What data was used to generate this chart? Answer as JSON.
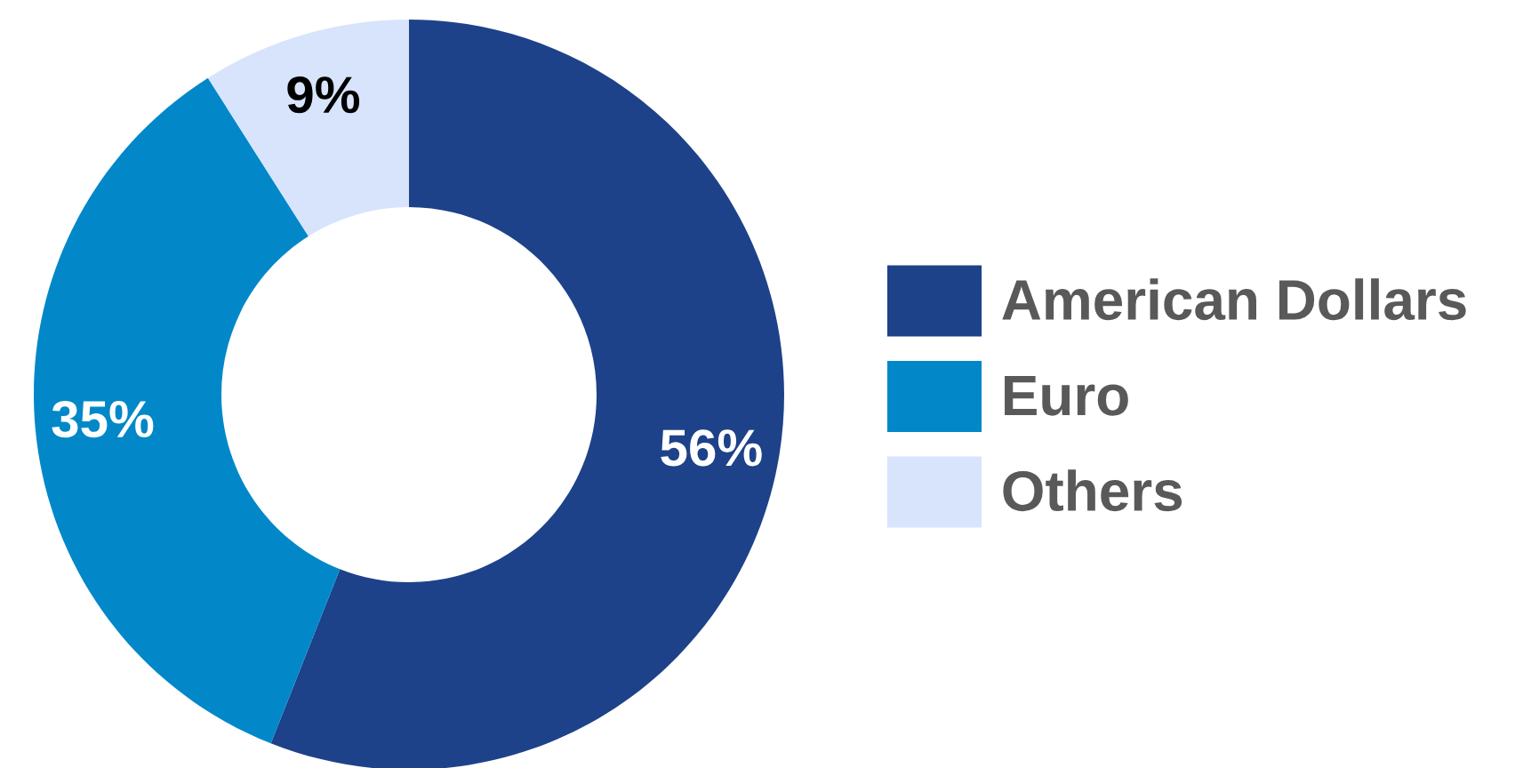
{
  "chart_data": {
    "type": "donut",
    "categories": [
      "American Dollars",
      "Euro",
      "Others"
    ],
    "values": [
      56,
      35,
      9
    ],
    "colors": [
      "#1d4289",
      "#0288c9",
      "#d7e4fc"
    ],
    "value_labels": [
      "56%",
      "35%",
      "9%"
    ],
    "legend": "right"
  }
}
